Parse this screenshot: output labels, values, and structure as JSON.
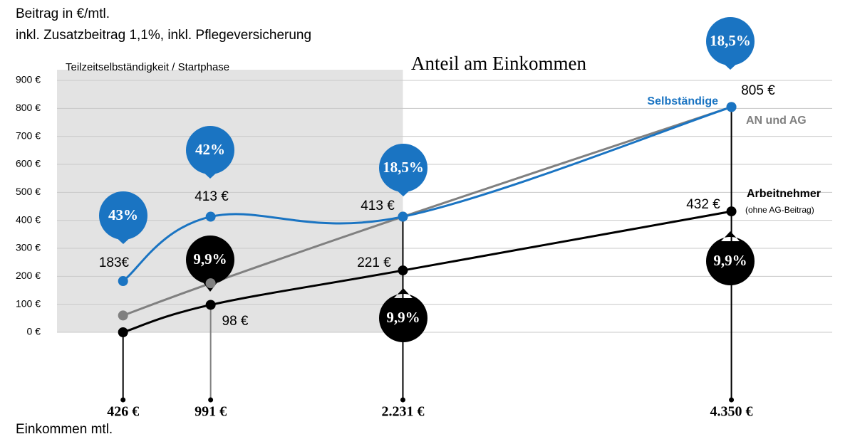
{
  "chart_data": {
    "type": "line",
    "title": "Beitrag in €/mtl.",
    "subtitle": "inkl. Zusatzbeitrag 1,1%, inkl. Pflegeversicherung",
    "x_label": "Einkommen mtl.",
    "annotation": "Anteil am Einkommen",
    "region": {
      "label": "Teilzeitselbständigkeit / Startphase",
      "range": [
        0,
        2231
      ],
      "color": "#e3e3e3"
    },
    "x": [
      426,
      991,
      2231,
      4350
    ],
    "xlim": [
      0,
      5000
    ],
    "xticks": [
      {
        "value": 426,
        "label": "426 €"
      },
      {
        "value": 991,
        "label": "991 €"
      },
      {
        "value": 2231,
        "label": "2.231 €"
      },
      {
        "value": 4350,
        "label": "4.350 €"
      }
    ],
    "ylim": [
      0,
      900
    ],
    "yticks": [
      {
        "value": 0,
        "label": "0 €"
      },
      {
        "value": 100,
        "label": "100 €"
      },
      {
        "value": 200,
        "label": "200 €"
      },
      {
        "value": 300,
        "label": "300 €"
      },
      {
        "value": 400,
        "label": "400 €"
      },
      {
        "value": 500,
        "label": "500 €"
      },
      {
        "value": 600,
        "label": "600 €"
      },
      {
        "value": 700,
        "label": "700 €"
      },
      {
        "value": 800,
        "label": "800 €"
      },
      {
        "value": 900,
        "label": "900 €"
      }
    ],
    "grid": true,
    "series": [
      {
        "name": "AN und AG",
        "color": "#808080",
        "values": [
          60,
          175,
          413,
          805
        ]
      },
      {
        "name": "Arbeitnehmer",
        "note": "(ohne AG-Beitrag)",
        "color": "#000000",
        "values": [
          0,
          98,
          221,
          432
        ],
        "value_labels": [
          null,
          "98 €",
          "221 €",
          "432 €"
        ],
        "share_labels": [
          null,
          "9,9%",
          "9,9%",
          "9,9%"
        ]
      },
      {
        "name": "Selbständige",
        "color": "#1a74c2",
        "values": [
          183,
          413,
          413,
          805
        ],
        "value_labels": [
          "183€",
          "413 €",
          "413 €",
          "805 €"
        ],
        "share_labels": [
          "43%",
          "42%",
          "18,5%",
          "18,5%"
        ]
      }
    ]
  }
}
